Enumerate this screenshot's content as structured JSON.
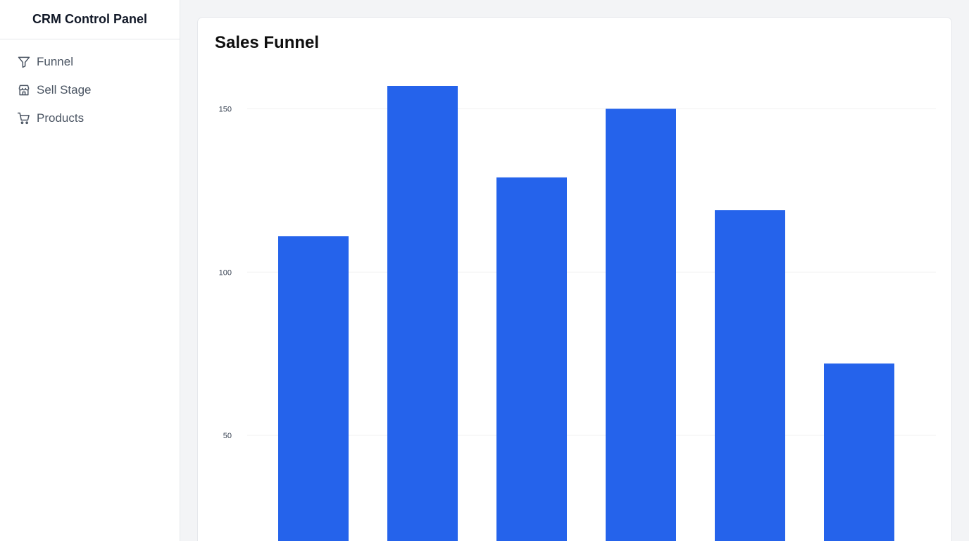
{
  "sidebar": {
    "title": "CRM Control Panel",
    "items": [
      {
        "label": "Funnel",
        "icon": "filter-icon"
      },
      {
        "label": "Sell Stage",
        "icon": "store-icon"
      },
      {
        "label": "Products",
        "icon": "cart-icon"
      }
    ]
  },
  "main": {
    "card_title": "Sales Funnel"
  },
  "chart_data": {
    "type": "bar",
    "title": "Sales Funnel",
    "values": [
      111,
      157,
      129,
      150,
      119,
      72
    ],
    "ylim": [
      0,
      157
    ],
    "yticks": [
      50,
      100,
      150
    ],
    "grid": true,
    "color": "#2563eb"
  }
}
